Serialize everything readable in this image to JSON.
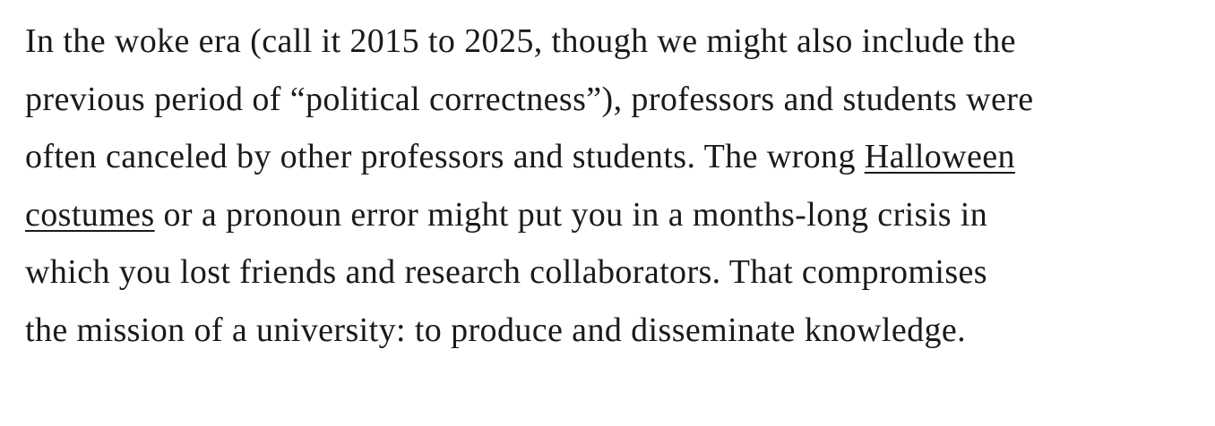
{
  "paragraph": {
    "line1": "In the woke era (call it 2015 to 2025, though we might also include the",
    "line2": "previous period of “political correctness”), professors and students were",
    "line3_before_link": "often canceled by other professors and students. The wrong ",
    "link_part1": "Halloween",
    "link_part2": "costumes",
    "line4_after_link": " or a pronoun error might put you in a months-long crisis in",
    "line5": "which you lost friends and research collaborators. That compromises",
    "line6": "the mission of a university: to produce and disseminate knowledge."
  }
}
